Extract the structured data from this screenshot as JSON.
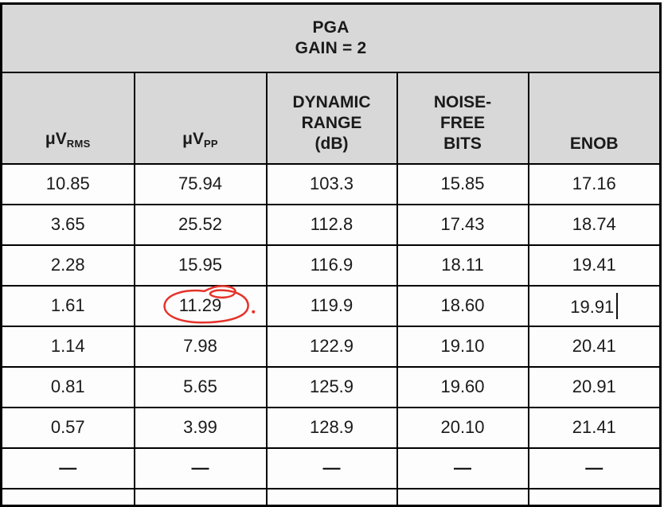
{
  "colors": {
    "header_bg": "#d8d8d8",
    "cell_bg": "#fdfdfd",
    "border": "#000000",
    "text": "#1a1a1a",
    "annotation_red": "#e5332a"
  },
  "table": {
    "title_line1": "PGA",
    "title_line2": "GAIN = 2",
    "columns": [
      {
        "label": "μV",
        "sub": "RMS"
      },
      {
        "label": "μV",
        "sub": "PP"
      },
      {
        "label": "DYNAMIC\nRANGE\n(dB)"
      },
      {
        "label": "NOISE-\nFREE\nBITS"
      },
      {
        "label": "ENOB"
      }
    ],
    "rows": [
      [
        "10.85",
        "75.94",
        "103.3",
        "15.85",
        "17.16"
      ],
      [
        "3.65",
        "25.52",
        "112.8",
        "17.43",
        "18.74"
      ],
      [
        "2.28",
        "15.95",
        "116.9",
        "18.11",
        "19.41"
      ],
      [
        "1.61",
        "11.29",
        "119.9",
        "18.60",
        "19.91"
      ],
      [
        "1.14",
        "7.98",
        "122.9",
        "19.10",
        "20.41"
      ],
      [
        "0.81",
        "5.65",
        "125.9",
        "19.60",
        "20.91"
      ],
      [
        "0.57",
        "3.99",
        "128.9",
        "20.10",
        "21.41"
      ],
      [
        "—",
        "—",
        "—",
        "—",
        "—"
      ]
    ],
    "dash_row_index": 7,
    "annotation": {
      "type": "hand-drawn-circle",
      "circled_value": "11.29",
      "row": 3,
      "col": 1,
      "color": "#e5332a"
    },
    "text_cursor": {
      "row": 3,
      "col": 4,
      "after_value": "19.91"
    }
  }
}
